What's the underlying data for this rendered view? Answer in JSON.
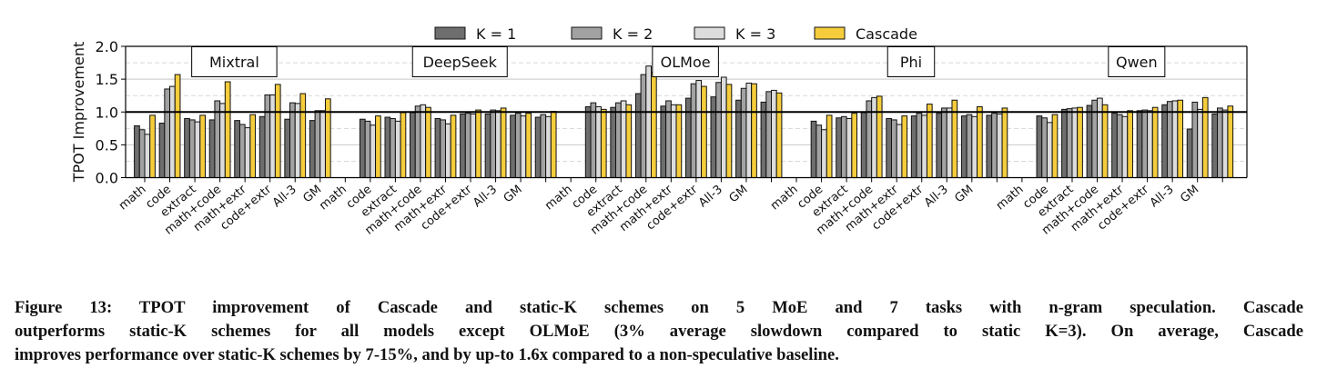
{
  "chart_data": {
    "type": "bar",
    "ylabel": "TPOT Improvement",
    "ylim": [
      0,
      2.0
    ],
    "yticks": [
      "0.0",
      "0.5",
      "1.0",
      "1.5",
      "2.0"
    ],
    "grid": true,
    "reference_line": 1.0,
    "legend_placement": "top-center",
    "categories": [
      "math",
      "code",
      "extract",
      "math+code",
      "math+extr",
      "code+extr",
      "All-3",
      "GM"
    ],
    "series_names": [
      "K = 1",
      "K = 2",
      "K = 3",
      "Cascade"
    ],
    "series_colors": [
      "#6e6e6e",
      "#a2a2a2",
      "#dcdcdc",
      "#f5cd3c"
    ],
    "panels": [
      {
        "title": "Mixtral",
        "values": [
          [
            0.79,
            0.73,
            0.66,
            0.95
          ],
          [
            0.83,
            1.35,
            1.39,
            1.57
          ],
          [
            0.9,
            0.88,
            0.85,
            0.95
          ],
          [
            0.88,
            1.17,
            1.13,
            1.46
          ],
          [
            0.87,
            0.81,
            0.76,
            0.96
          ],
          [
            0.93,
            1.26,
            1.26,
            1.42
          ],
          [
            0.89,
            1.14,
            1.13,
            1.28
          ],
          [
            0.87,
            1.02,
            1.02,
            1.2
          ]
        ]
      },
      {
        "title": "DeepSeek",
        "values": [
          [
            0.89,
            0.86,
            0.8,
            0.94
          ],
          [
            0.92,
            0.9,
            0.86,
            0.99
          ],
          [
            0.99,
            1.09,
            1.11,
            1.07
          ],
          [
            0.9,
            0.88,
            0.82,
            0.95
          ],
          [
            0.97,
            0.98,
            0.97,
            1.03
          ],
          [
            0.97,
            1.03,
            1.02,
            1.06
          ],
          [
            0.95,
            0.98,
            0.94,
            0.98
          ],
          [
            0.92,
            0.96,
            0.93,
            1.01
          ]
        ]
      },
      {
        "title": "OLMoe",
        "values": [
          [
            1.08,
            1.14,
            1.08,
            1.04
          ],
          [
            1.07,
            1.14,
            1.17,
            1.11
          ],
          [
            1.28,
            1.57,
            1.7,
            1.6
          ],
          [
            1.09,
            1.17,
            1.11,
            1.11
          ],
          [
            1.21,
            1.43,
            1.48,
            1.39
          ],
          [
            1.23,
            1.45,
            1.53,
            1.42
          ],
          [
            1.18,
            1.36,
            1.44,
            1.43
          ],
          [
            1.15,
            1.31,
            1.33,
            1.29
          ]
        ]
      },
      {
        "title": "Phi",
        "values": [
          [
            0.86,
            0.8,
            0.73,
            0.95
          ],
          [
            0.91,
            0.93,
            0.9,
            0.98
          ],
          [
            0.99,
            1.17,
            1.22,
            1.24
          ],
          [
            0.9,
            0.88,
            0.81,
            0.94
          ],
          [
            0.94,
            0.98,
            0.95,
            1.12
          ],
          [
            0.98,
            1.06,
            1.06,
            1.18
          ],
          [
            0.94,
            0.96,
            0.93,
            1.08
          ],
          [
            0.95,
            0.98,
            0.97,
            1.06
          ]
        ]
      },
      {
        "title": "Qwen",
        "values": [
          [
            0.94,
            0.91,
            0.84,
            0.96
          ],
          [
            1.04,
            1.05,
            1.06,
            1.07
          ],
          [
            1.1,
            1.18,
            1.21,
            1.11
          ],
          [
            0.98,
            0.96,
            0.93,
            1.02
          ],
          [
            1.02,
            1.03,
            1.02,
            1.07
          ],
          [
            1.11,
            1.16,
            1.17,
            1.18
          ],
          [
            0.74,
            1.15,
            1.04,
            1.22
          ],
          [
            0.97,
            1.06,
            1.03,
            1.09
          ]
        ]
      }
    ]
  },
  "caption": {
    "lines": [
      "Figure 13: TPOT improvement of Cascade and static-K schemes on 5 MoE and 7 tasks with n-gram speculation. Cascade",
      "outperforms static-K schemes for all models except OLMoE (3% average slowdown compared to static K=3). On average, Cascade",
      "improves performance over static-K schemes by 7-15%, and by up-to 1.6x compared to a non-speculative baseline."
    ]
  }
}
